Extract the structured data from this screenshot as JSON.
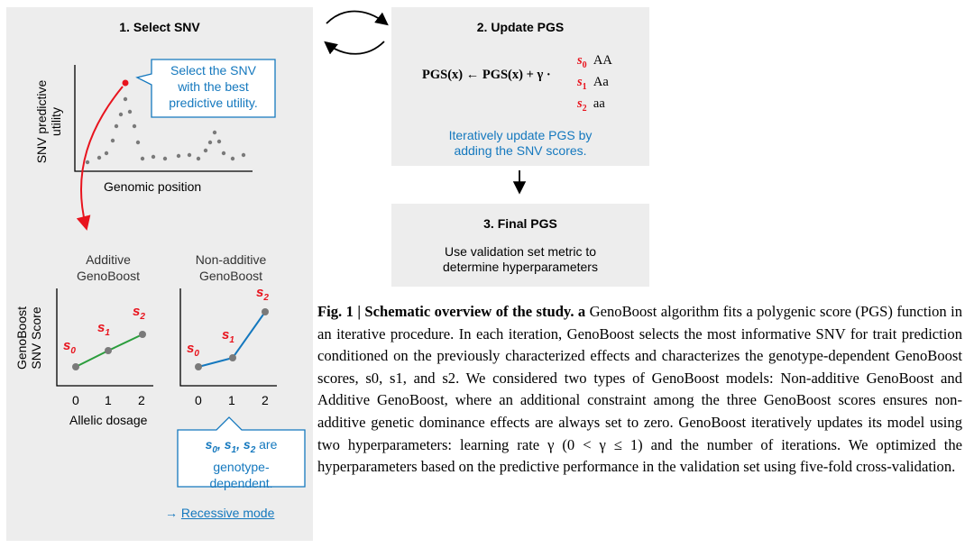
{
  "panel1": {
    "title": "1. Select SNV",
    "callout": [
      "Select the SNV",
      "with the best",
      "predictive utility."
    ],
    "ylabel": [
      "SNV predictive",
      "utility"
    ],
    "xlabel": "Genomic position",
    "additive_title": [
      "Additive",
      "GenoBoost"
    ],
    "nonadditive_title": [
      "Non-additive",
      "GenoBoost"
    ],
    "score_ylabel": [
      "GenoBoost",
      "SNV Score"
    ],
    "ticks": [
      "0",
      "1",
      "2"
    ],
    "dosage_label": "Allelic dosage",
    "s0": "s",
    "s0_sub": "0",
    "s1": "s",
    "s1_sub": "1",
    "s2": "s",
    "s2_sub": "2",
    "callout2_line1_suffix": "are",
    "callout2_line2": "genotype-",
    "callout2_line3": "dependent.",
    "recessive_arrow": "→",
    "recessive_link": "Recessive mode",
    "colors": {
      "panel_bg": "#ededed",
      "additive_line": "#2a9d3c",
      "nonadditive_line": "#1478be",
      "accent_red": "#e8141e",
      "callout_blue": "#1478be",
      "dots": "#7a7a7a"
    }
  },
  "panel2": {
    "title": "2. Update PGS",
    "formula_lhs": "PGS(x) ← PGS(x) + γ ·",
    "cases": [
      {
        "s": "s",
        "sub": "0",
        "genotype": "AA"
      },
      {
        "s": "s",
        "sub": "1",
        "genotype": "Aa"
      },
      {
        "s": "s",
        "sub": "2",
        "genotype": "aa"
      }
    ],
    "note": [
      "Iteratively update PGS by",
      "adding the SNV scores."
    ]
  },
  "panel3": {
    "title": "3. Final PGS",
    "note": [
      "Use validation set metric to",
      "determine hyperparameters"
    ]
  },
  "caption": {
    "label": "Fig. 1 | Schematic overview of the study.",
    "panel_letter": "a",
    "text": "GenoBoost algorithm fits a polygenic score (PGS) function in an iterative procedure. In each iteration, GenoBoost selects the most informative SNV for trait prediction conditioned on the previously characterized effects and characterizes the genotype-dependent GenoBoost scores, s0, s1, and s2. We considered two types of GenoBoost models: Non-additive GenoBoost and Additive GenoBoost, where an additional constraint among the three GenoBoost scores ensures non-additive genetic dominance effects are always set to zero. GenoBoost iteratively updates its model using two hyperparameters: learning rate γ (0 < γ ≤ 1) and the number of iterations. We optimized the hyperparameters based on the predictive performance in the validation set using five-fold cross-validation."
  }
}
